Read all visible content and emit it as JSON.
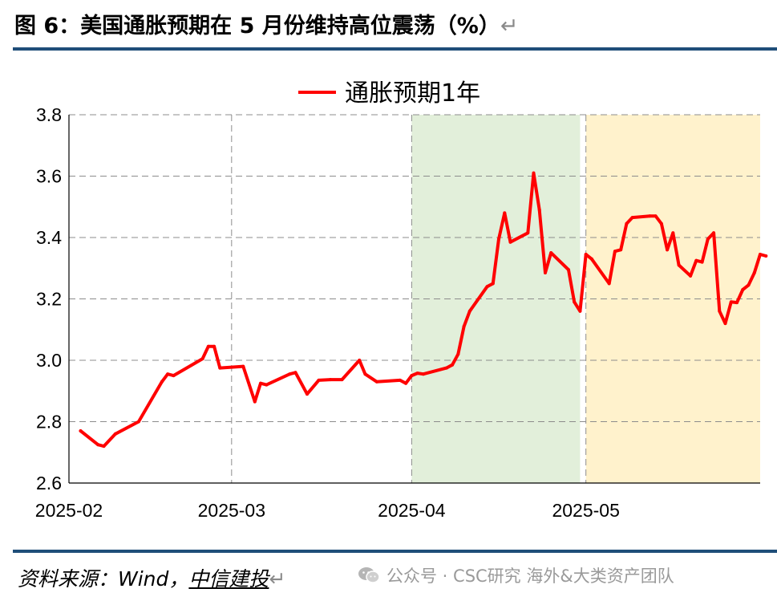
{
  "header": {
    "figure_title": "图 6：美国通胀预期在 5 月份维持高位震荡（%）",
    "return_mark": "↵"
  },
  "chart_data": {
    "type": "line",
    "legend_position": "top-center",
    "grid": true,
    "grid_style": "dashed",
    "x_dates_start": "2025-02-01",
    "xticks": [
      "2025-02",
      "2025-03",
      "2025-04",
      "2025-05"
    ],
    "xtick_dates": [
      "2025-02-01",
      "2025-03-01",
      "2025-04-01",
      "2025-05-01"
    ],
    "xlim": [
      "2025-02-01",
      "2025-05-31"
    ],
    "ylim": [
      2.6,
      3.8
    ],
    "yticks": [
      2.6,
      2.8,
      3.0,
      3.2,
      3.4,
      3.6,
      3.8
    ],
    "shaded_ranges": [
      {
        "start": "2025-04-01",
        "end": "2025-04-30",
        "color": "#e2efda"
      },
      {
        "start": "2025-05-01",
        "end": "2025-05-31",
        "color": "#fff2cc"
      }
    ],
    "series": [
      {
        "name": "通胀预期1年",
        "color": "#ff0000",
        "points": [
          [
            "2025-02-03",
            2.77
          ],
          [
            "2025-02-06",
            2.725
          ],
          [
            "2025-02-07",
            2.72
          ],
          [
            "2025-02-09",
            2.76
          ],
          [
            "2025-02-13",
            2.8
          ],
          [
            "2025-02-17",
            2.93
          ],
          [
            "2025-02-18",
            2.955
          ],
          [
            "2025-02-19",
            2.95
          ],
          [
            "2025-02-24",
            3.005
          ],
          [
            "2025-02-25",
            3.045
          ],
          [
            "2025-02-26",
            3.045
          ],
          [
            "2025-02-27",
            2.975
          ],
          [
            "2025-03-03",
            2.98
          ],
          [
            "2025-03-05",
            2.865
          ],
          [
            "2025-03-06",
            2.925
          ],
          [
            "2025-03-07",
            2.92
          ],
          [
            "2025-03-11",
            2.955
          ],
          [
            "2025-03-12",
            2.96
          ],
          [
            "2025-03-14",
            2.89
          ],
          [
            "2025-03-16",
            2.935
          ],
          [
            "2025-03-18",
            2.937
          ],
          [
            "2025-03-20",
            2.937
          ],
          [
            "2025-03-23",
            3.0
          ],
          [
            "2025-03-24",
            2.955
          ],
          [
            "2025-03-26",
            2.93
          ],
          [
            "2025-03-30",
            2.935
          ],
          [
            "2025-03-31",
            2.925
          ],
          [
            "2025-04-01",
            2.95
          ],
          [
            "2025-04-02",
            2.958
          ],
          [
            "2025-04-03",
            2.955
          ],
          [
            "2025-04-07",
            2.975
          ],
          [
            "2025-04-08",
            2.985
          ],
          [
            "2025-04-09",
            3.02
          ],
          [
            "2025-04-10",
            3.11
          ],
          [
            "2025-04-11",
            3.16
          ],
          [
            "2025-04-14",
            3.24
          ],
          [
            "2025-04-15",
            3.25
          ],
          [
            "2025-04-16",
            3.395
          ],
          [
            "2025-04-17",
            3.48
          ],
          [
            "2025-04-18",
            3.385
          ],
          [
            "2025-04-21",
            3.415
          ],
          [
            "2025-04-22",
            3.61
          ],
          [
            "2025-04-23",
            3.49
          ],
          [
            "2025-04-24",
            3.285
          ],
          [
            "2025-04-25",
            3.35
          ],
          [
            "2025-04-28",
            3.295
          ],
          [
            "2025-04-29",
            3.19
          ],
          [
            "2025-04-30",
            3.16
          ],
          [
            "2025-05-01",
            3.345
          ],
          [
            "2025-05-02",
            3.33
          ],
          [
            "2025-05-05",
            3.25
          ],
          [
            "2025-05-06",
            3.355
          ],
          [
            "2025-05-07",
            3.36
          ],
          [
            "2025-05-08",
            3.445
          ],
          [
            "2025-05-09",
            3.465
          ],
          [
            "2025-05-12",
            3.47
          ],
          [
            "2025-05-13",
            3.47
          ],
          [
            "2025-05-14",
            3.445
          ],
          [
            "2025-05-15",
            3.36
          ],
          [
            "2025-05-16",
            3.415
          ],
          [
            "2025-05-17",
            3.31
          ],
          [
            "2025-05-19",
            3.275
          ],
          [
            "2025-05-20",
            3.325
          ],
          [
            "2025-05-21",
            3.32
          ],
          [
            "2025-05-22",
            3.395
          ],
          [
            "2025-05-23",
            3.415
          ],
          [
            "2025-05-24",
            3.16
          ],
          [
            "2025-05-25",
            3.12
          ],
          [
            "2025-05-26",
            3.19
          ],
          [
            "2025-05-27",
            3.188
          ],
          [
            "2025-05-28",
            3.23
          ],
          [
            "2025-05-29",
            3.245
          ],
          [
            "2025-05-30",
            3.285
          ],
          [
            "2025-05-31",
            3.345
          ],
          [
            "2025-06-01",
            3.34
          ]
        ]
      }
    ]
  },
  "footer": {
    "source_label": "资料来源：Wind，",
    "source_org": "中信建投",
    "return_mark": "↵",
    "watermark": "公众号 · CSC研究 海外&大类资产团队",
    "watermark_icon": "wechat-icon"
  }
}
